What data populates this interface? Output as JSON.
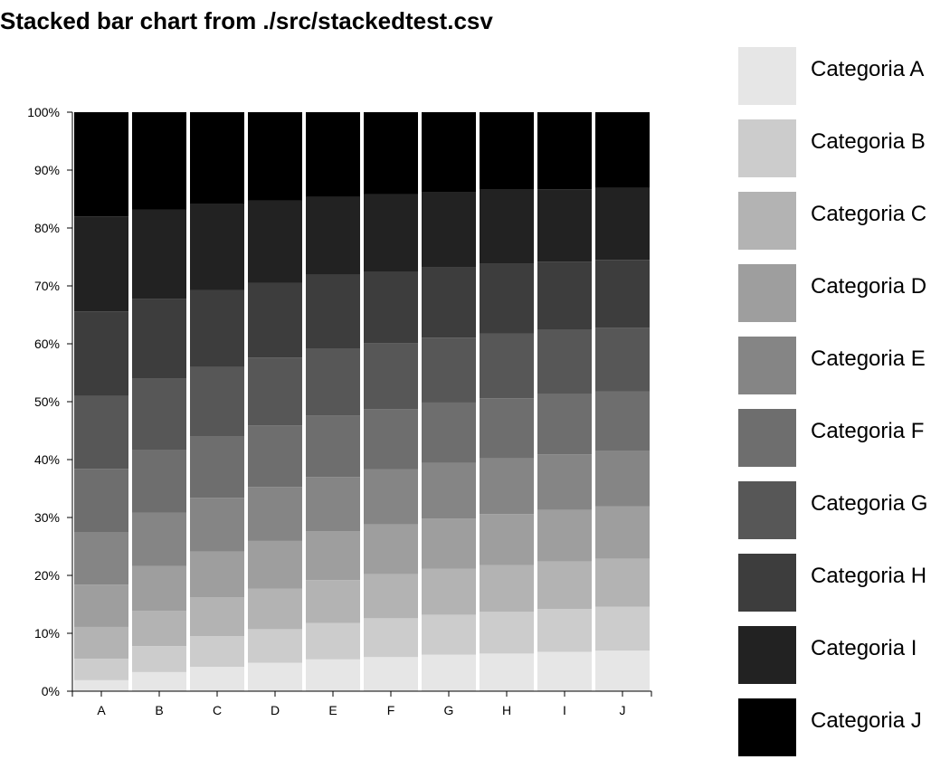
{
  "chart_data": {
    "type": "bar",
    "stacked": true,
    "normalized": true,
    "title": "Stacked bar chart from ./src/stackedtest.csv",
    "xlabel": "",
    "ylabel": "",
    "ylim": [
      0,
      100
    ],
    "y_ticks": [
      "0%",
      "10%",
      "20%",
      "30%",
      "40%",
      "50%",
      "60%",
      "70%",
      "80%",
      "90%",
      "100%"
    ],
    "categories": [
      "A",
      "B",
      "C",
      "D",
      "E",
      "F",
      "G",
      "H",
      "I",
      "J"
    ],
    "legend_position": "right",
    "series": [
      {
        "name": "Categoria A",
        "color": "#e6e6e6",
        "values": [
          1.9,
          3.3,
          4.2,
          4.9,
          5.5,
          5.9,
          6.3,
          6.5,
          6.8,
          7.0
        ]
      },
      {
        "name": "Categoria B",
        "color": "#cccccc",
        "values": [
          3.7,
          4.5,
          5.3,
          5.8,
          6.3,
          6.7,
          6.9,
          7.2,
          7.4,
          7.6
        ]
      },
      {
        "name": "Categoria C",
        "color": "#b3b3b3",
        "values": [
          5.5,
          6.1,
          6.7,
          7.0,
          7.4,
          7.6,
          7.9,
          8.1,
          8.2,
          8.3
        ]
      },
      {
        "name": "Categoria D",
        "color": "#9e9e9e",
        "values": [
          7.3,
          7.7,
          7.9,
          8.2,
          8.4,
          8.6,
          8.7,
          8.8,
          8.9,
          9.0
        ]
      },
      {
        "name": "Categoria E",
        "color": "#858585",
        "values": [
          9.1,
          9.2,
          9.3,
          9.3,
          9.4,
          9.5,
          9.6,
          9.6,
          9.6,
          9.6
        ]
      },
      {
        "name": "Categoria F",
        "color": "#6e6e6e",
        "values": [
          10.9,
          10.8,
          10.6,
          10.6,
          10.6,
          10.4,
          10.4,
          10.4,
          10.4,
          10.3
        ]
      },
      {
        "name": "Categoria G",
        "color": "#575757",
        "values": [
          12.6,
          12.4,
          12.0,
          11.7,
          11.5,
          11.4,
          11.2,
          11.2,
          11.1,
          11.0
        ]
      },
      {
        "name": "Categoria H",
        "color": "#3d3d3d",
        "values": [
          14.6,
          13.8,
          13.3,
          12.9,
          12.8,
          12.4,
          12.1,
          12.0,
          11.8,
          11.7
        ]
      },
      {
        "name": "Categoria I",
        "color": "#222222",
        "values": [
          16.4,
          15.4,
          14.8,
          14.2,
          13.5,
          13.3,
          13.0,
          12.8,
          12.5,
          12.4
        ]
      },
      {
        "name": "Categoria J",
        "color": "#000000",
        "values": [
          18.0,
          16.8,
          15.9,
          15.2,
          14.6,
          14.2,
          13.8,
          13.4,
          13.3,
          13.1
        ]
      }
    ]
  }
}
